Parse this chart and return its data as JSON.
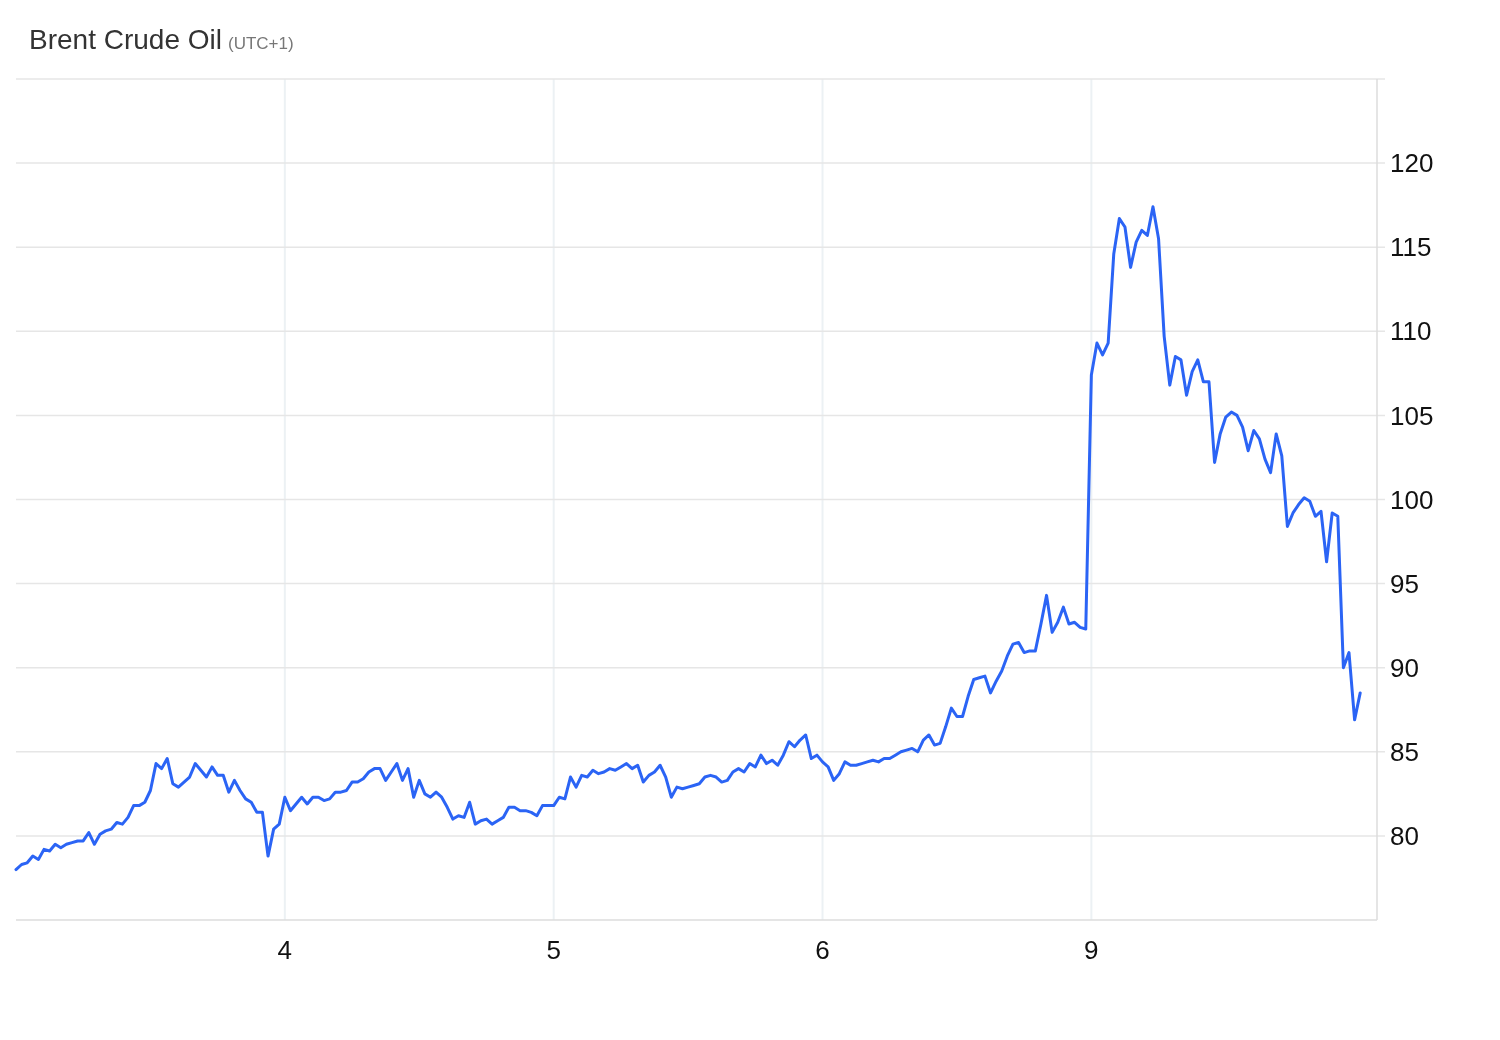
{
  "chart_data": {
    "type": "line",
    "title": "Brent Crude Oil",
    "subtitle": "(UTC+1)",
    "categories": [
      null,
      null,
      null,
      null,
      null,
      null,
      null,
      null,
      null,
      null,
      null,
      null,
      null,
      null,
      null,
      null,
      null,
      null,
      null,
      null,
      null,
      null,
      null,
      null,
      null,
      null,
      null,
      null,
      null,
      null,
      null,
      null,
      null,
      null,
      null,
      null,
      null,
      null,
      null,
      null,
      null,
      null,
      null,
      null,
      null,
      null,
      null,
      null,
      "4",
      null,
      null,
      null,
      null,
      null,
      null,
      null,
      null,
      null,
      null,
      null,
      null,
      null,
      null,
      null,
      null,
      null,
      null,
      null,
      null,
      null,
      null,
      null,
      null,
      null,
      null,
      null,
      null,
      null,
      null,
      null,
      null,
      null,
      null,
      null,
      null,
      null,
      null,
      null,
      null,
      null,
      null,
      null,
      null,
      null,
      null,
      null,
      "5",
      null,
      null,
      null,
      null,
      null,
      null,
      null,
      null,
      null,
      null,
      null,
      null,
      null,
      null,
      null,
      null,
      null,
      null,
      null,
      null,
      null,
      null,
      null,
      null,
      null,
      null,
      null,
      null,
      null,
      null,
      null,
      null,
      null,
      null,
      null,
      null,
      null,
      null,
      null,
      null,
      null,
      null,
      null,
      null,
      null,
      null,
      null,
      "6",
      null,
      null,
      null,
      null,
      null,
      null,
      null,
      null,
      null,
      null,
      null,
      null,
      null,
      null,
      null,
      null,
      null,
      null,
      null,
      null,
      null,
      null,
      null,
      null,
      null,
      null,
      null,
      null,
      null,
      null,
      null,
      null,
      null,
      null,
      null,
      null,
      null,
      null,
      null,
      null,
      null,
      null,
      null,
      null,
      null,
      null,
      null,
      "9",
      null,
      null,
      null,
      null,
      null,
      null,
      null,
      null,
      null,
      null,
      null,
      null,
      null,
      null,
      null,
      null,
      null,
      null,
      null,
      null,
      null,
      null,
      null,
      null,
      null,
      null,
      null,
      null,
      null,
      null,
      null,
      null,
      null,
      null,
      null,
      null,
      null,
      null,
      null,
      null,
      null,
      null,
      null,
      null,
      null,
      null,
      null,
      null,
      null,
      null,
      null
    ],
    "series": [
      {
        "color": "#2b64f5",
        "values": [
          78.0,
          78.3,
          78.4,
          78.8,
          78.6,
          79.2,
          79.1,
          79.5,
          79.3,
          79.5,
          79.6,
          79.7,
          79.7,
          80.2,
          79.5,
          80.1,
          80.3,
          80.4,
          80.8,
          80.7,
          81.1,
          81.8,
          81.8,
          82.0,
          82.7,
          84.3,
          84.0,
          84.6,
          83.1,
          82.9,
          83.2,
          83.5,
          84.3,
          83.9,
          83.5,
          84.1,
          83.6,
          83.6,
          82.6,
          83.3,
          82.7,
          82.2,
          82.0,
          81.4,
          81.4,
          78.8,
          80.4,
          80.7,
          82.3,
          81.5,
          81.9,
          82.3,
          81.9,
          82.3,
          82.3,
          82.1,
          82.2,
          82.6,
          82.6,
          82.7,
          83.2,
          83.2,
          83.4,
          83.8,
          84.0,
          84.0,
          83.3,
          83.8,
          84.3,
          83.3,
          84.0,
          82.3,
          83.3,
          82.5,
          82.3,
          82.6,
          82.3,
          81.7,
          81.0,
          81.2,
          81.1,
          82.0,
          80.7,
          80.9,
          81.0,
          80.7,
          80.9,
          81.1,
          81.7,
          81.7,
          81.5,
          81.5,
          81.4,
          81.2,
          81.8,
          81.8,
          81.8,
          82.3,
          82.2,
          83.5,
          82.9,
          83.6,
          83.5,
          83.9,
          83.7,
          83.8,
          84.0,
          83.9,
          84.1,
          84.3,
          84.0,
          84.2,
          83.2,
          83.6,
          83.8,
          84.2,
          83.5,
          82.3,
          82.9,
          82.8,
          82.9,
          83.0,
          83.1,
          83.5,
          83.6,
          83.5,
          83.2,
          83.3,
          83.8,
          84.0,
          83.8,
          84.3,
          84.1,
          84.8,
          84.3,
          84.5,
          84.2,
          84.8,
          85.6,
          85.3,
          85.7,
          86.0,
          84.6,
          84.8,
          84.4,
          84.1,
          83.3,
          83.7,
          84.4,
          84.2,
          84.2,
          84.3,
          84.4,
          84.5,
          84.4,
          84.6,
          84.6,
          84.8,
          85.0,
          85.1,
          85.2,
          85.0,
          85.7,
          86.0,
          85.4,
          85.5,
          86.5,
          87.6,
          87.1,
          87.1,
          88.3,
          89.3,
          89.4,
          89.5,
          88.5,
          89.2,
          89.8,
          90.7,
          91.4,
          91.5,
          90.9,
          91.0,
          91.0,
          92.6,
          94.3,
          92.1,
          92.7,
          93.6,
          92.6,
          92.7,
          92.4,
          92.3,
          107.4,
          109.3,
          108.6,
          109.3,
          114.6,
          116.7,
          116.2,
          113.8,
          115.3,
          116.0,
          115.7,
          117.4,
          115.5,
          109.7,
          106.8,
          108.5,
          108.3,
          106.2,
          107.6,
          108.3,
          107.0,
          107.0,
          102.2,
          103.9,
          104.9,
          105.2,
          105.0,
          104.3,
          102.9,
          104.1,
          103.6,
          102.4,
          101.6,
          103.9,
          102.6,
          98.4,
          99.2,
          99.7,
          100.1,
          99.9,
          99.0,
          99.3,
          96.3,
          99.2,
          99.0,
          90.0,
          90.9,
          86.9,
          88.5,
          null,
          null,
          null
        ]
      }
    ],
    "ylim": [
      75,
      125
    ],
    "yticks": [
      80,
      85,
      90,
      95,
      100,
      105,
      110,
      115,
      120
    ],
    "grid": true
  }
}
